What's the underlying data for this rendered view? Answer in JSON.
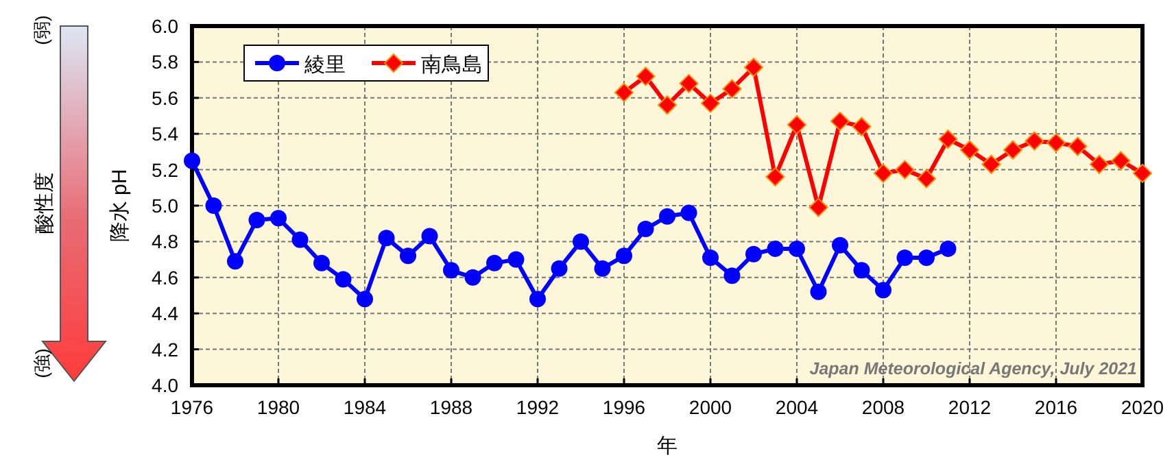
{
  "chart_data": {
    "type": "line",
    "xlabel": "年",
    "ylabel": "降水 pH",
    "annotations": [
      "Japan Meteorological Agency, July 2021",
      "酸性度",
      "(弱)",
      "(強)"
    ],
    "series": [
      {
        "name": "綾里",
        "color": "#0000ff",
        "marker": "circle",
        "x": [
          1976,
          1977,
          1978,
          1979,
          1980,
          1981,
          1982,
          1983,
          1984,
          1985,
          1986,
          1987,
          1988,
          1989,
          1990,
          1991,
          1992,
          1993,
          1994,
          1995,
          1996,
          1997,
          1998,
          1999,
          2000,
          2001,
          2002,
          2003,
          2004,
          2005,
          2006,
          2007,
          2008,
          2009,
          2010,
          2011
        ],
        "values": [
          5.25,
          5.0,
          4.69,
          4.92,
          4.93,
          4.81,
          4.68,
          4.59,
          4.48,
          4.82,
          4.72,
          4.83,
          4.64,
          4.6,
          4.68,
          4.7,
          4.48,
          4.65,
          4.8,
          4.65,
          4.72,
          4.87,
          4.94,
          4.96,
          4.71,
          4.61,
          4.73,
          4.76,
          4.76,
          4.52,
          4.78,
          4.64,
          4.53,
          4.71,
          4.71,
          4.76
        ]
      },
      {
        "name": "南鳥島",
        "color": "#ff0000",
        "marker": "diamond",
        "x": [
          1996,
          1997,
          1998,
          1999,
          2000,
          2001,
          2002,
          2003,
          2004,
          2005,
          2006,
          2007,
          2008,
          2009,
          2010,
          2011,
          2012,
          2013,
          2014,
          2015,
          2016,
          2017,
          2018,
          2019,
          2020
        ],
        "values": [
          5.63,
          5.72,
          5.56,
          5.68,
          5.57,
          5.65,
          5.77,
          5.16,
          5.45,
          4.99,
          5.47,
          5.44,
          5.18,
          5.2,
          5.15,
          5.37,
          5.31,
          5.23,
          5.31,
          5.36,
          5.35,
          5.33,
          5.23,
          5.25,
          5.18
        ]
      }
    ],
    "xlim": [
      1976,
      2020
    ],
    "xticks": [
      1976,
      1980,
      1984,
      1988,
      1992,
      1996,
      2000,
      2004,
      2008,
      2012,
      2016,
      2020
    ],
    "ylim": [
      4.0,
      6.0
    ],
    "yticks": [
      {
        "value": 4.0,
        "label": "4.0"
      },
      {
        "value": 4.2,
        "label": "4.2"
      },
      {
        "value": 4.4,
        "label": "4.4"
      },
      {
        "value": 4.6,
        "label": "4.6"
      },
      {
        "value": 4.8,
        "label": "4.8"
      },
      {
        "value": 5.0,
        "label": "5.0"
      },
      {
        "value": 5.2,
        "label": "5.2"
      },
      {
        "value": 5.4,
        "label": "5.4"
      },
      {
        "value": 5.6,
        "label": "5.6"
      },
      {
        "value": 5.8,
        "label": "5.8"
      },
      {
        "value": 6.0,
        "label": "6.0"
      }
    ],
    "grid": true,
    "legend": "top left"
  }
}
